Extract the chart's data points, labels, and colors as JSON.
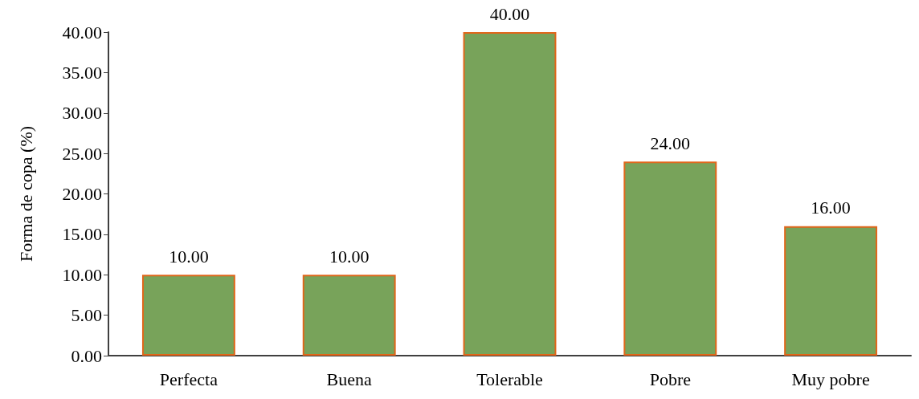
{
  "chart_data": {
    "type": "bar",
    "ylabel": "Forma de copa (%)",
    "categories": [
      "Perfecta",
      "Buena",
      "Tolerable",
      "Pobre",
      "Muy pobre"
    ],
    "values": [
      10,
      10,
      40,
      24,
      16
    ],
    "value_labels": [
      "10.00",
      "10.00",
      "40.00",
      "24.00",
      "16.00"
    ],
    "color": "#78a35a",
    "ylim": [
      0,
      40
    ],
    "yticks": [
      {
        "value": 0,
        "label": "0.00"
      },
      {
        "value": 5,
        "label": "5.00"
      },
      {
        "value": 10,
        "label": "10.00"
      },
      {
        "value": 15,
        "label": "15.00"
      },
      {
        "value": 20,
        "label": "20.00"
      },
      {
        "value": 25,
        "label": "25.00"
      },
      {
        "value": 30,
        "label": "30.00"
      },
      {
        "value": 35,
        "label": "35.00"
      },
      {
        "value": 40,
        "label": "40.00"
      }
    ],
    "grid": false
  }
}
